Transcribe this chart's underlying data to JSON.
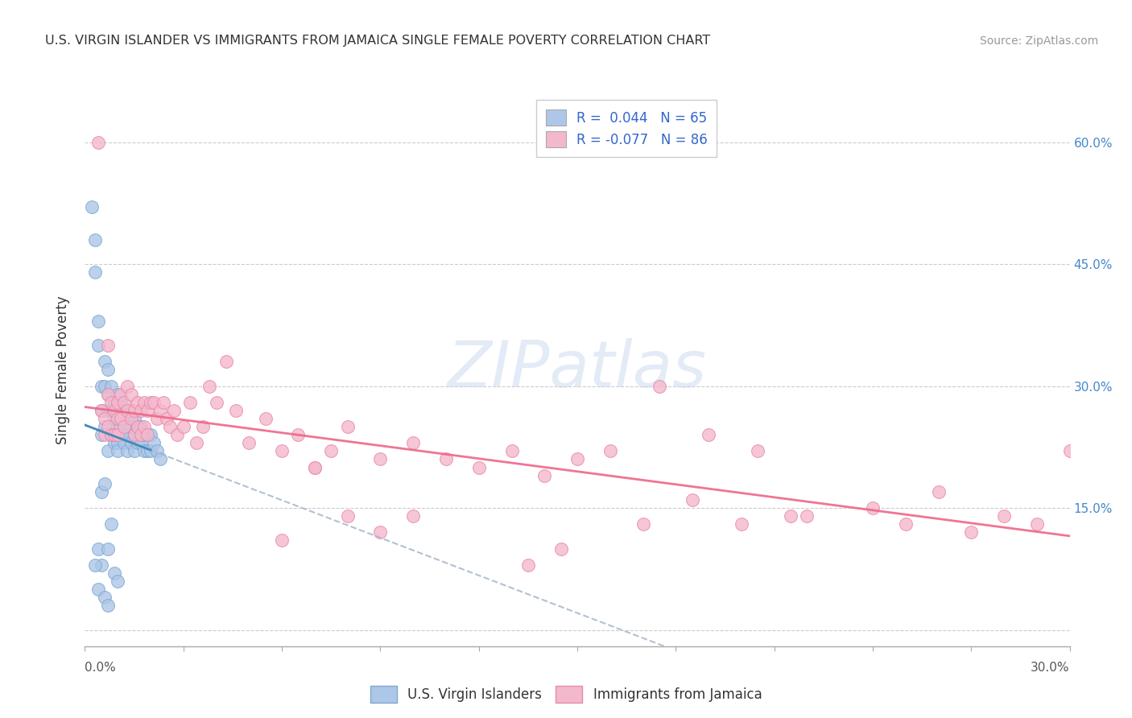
{
  "title": "U.S. VIRGIN ISLANDER VS IMMIGRANTS FROM JAMAICA SINGLE FEMALE POVERTY CORRELATION CHART",
  "source": "Source: ZipAtlas.com",
  "ylabel": "Single Female Poverty",
  "y_ticks": [
    0.0,
    0.15,
    0.3,
    0.45,
    0.6
  ],
  "y_tick_labels": [
    "",
    "15.0%",
    "30.0%",
    "45.0%",
    "60.0%"
  ],
  "x_range": [
    0.0,
    0.3
  ],
  "y_range": [
    -0.02,
    0.66
  ],
  "blue_color": "#aec6e8",
  "pink_color": "#f4b8cc",
  "blue_edge": "#7aaad0",
  "pink_edge": "#e88aaa",
  "trend_blue_color": "#4488bb",
  "trend_pink_color": "#ee6688",
  "watermark_color": "#c8d8f0",
  "R_blue": 0.044,
  "N_blue": 65,
  "R_pink": -0.077,
  "N_pink": 86,
  "blue_x": [
    0.002,
    0.003,
    0.003,
    0.004,
    0.004,
    0.004,
    0.005,
    0.005,
    0.005,
    0.005,
    0.006,
    0.006,
    0.006,
    0.007,
    0.007,
    0.007,
    0.007,
    0.008,
    0.008,
    0.008,
    0.009,
    0.009,
    0.009,
    0.01,
    0.01,
    0.01,
    0.01,
    0.01,
    0.011,
    0.011,
    0.011,
    0.012,
    0.012,
    0.012,
    0.013,
    0.013,
    0.013,
    0.014,
    0.014,
    0.015,
    0.015,
    0.015,
    0.016,
    0.016,
    0.017,
    0.017,
    0.018,
    0.018,
    0.019,
    0.019,
    0.02,
    0.02,
    0.021,
    0.022,
    0.023,
    0.004,
    0.005,
    0.003,
    0.006,
    0.007,
    0.008,
    0.009,
    0.01,
    0.006,
    0.007
  ],
  "blue_y": [
    0.52,
    0.48,
    0.44,
    0.38,
    0.35,
    0.1,
    0.3,
    0.27,
    0.24,
    0.08,
    0.33,
    0.3,
    0.25,
    0.32,
    0.29,
    0.27,
    0.22,
    0.3,
    0.27,
    0.24,
    0.28,
    0.26,
    0.23,
    0.29,
    0.27,
    0.25,
    0.23,
    0.22,
    0.28,
    0.26,
    0.24,
    0.27,
    0.25,
    0.23,
    0.26,
    0.24,
    0.22,
    0.25,
    0.23,
    0.26,
    0.24,
    0.22,
    0.25,
    0.23,
    0.25,
    0.23,
    0.24,
    0.22,
    0.24,
    0.22,
    0.24,
    0.22,
    0.23,
    0.22,
    0.21,
    0.05,
    0.17,
    0.08,
    0.18,
    0.1,
    0.13,
    0.07,
    0.06,
    0.04,
    0.03
  ],
  "pink_x": [
    0.004,
    0.005,
    0.006,
    0.006,
    0.007,
    0.007,
    0.008,
    0.008,
    0.009,
    0.009,
    0.01,
    0.01,
    0.01,
    0.011,
    0.011,
    0.012,
    0.012,
    0.013,
    0.013,
    0.014,
    0.014,
    0.015,
    0.015,
    0.016,
    0.016,
    0.017,
    0.017,
    0.018,
    0.018,
    0.019,
    0.019,
    0.02,
    0.021,
    0.022,
    0.023,
    0.024,
    0.025,
    0.026,
    0.027,
    0.028,
    0.03,
    0.032,
    0.034,
    0.036,
    0.038,
    0.04,
    0.043,
    0.046,
    0.05,
    0.055,
    0.06,
    0.065,
    0.07,
    0.075,
    0.08,
    0.09,
    0.1,
    0.11,
    0.12,
    0.13,
    0.14,
    0.15,
    0.16,
    0.175,
    0.19,
    0.205,
    0.22,
    0.24,
    0.26,
    0.28,
    0.3,
    0.17,
    0.185,
    0.2,
    0.215,
    0.06,
    0.07,
    0.08,
    0.09,
    0.1,
    0.007,
    0.135,
    0.145,
    0.25,
    0.27,
    0.29
  ],
  "pink_y": [
    0.6,
    0.27,
    0.26,
    0.24,
    0.29,
    0.25,
    0.28,
    0.24,
    0.27,
    0.24,
    0.28,
    0.26,
    0.24,
    0.29,
    0.26,
    0.28,
    0.25,
    0.3,
    0.27,
    0.29,
    0.26,
    0.27,
    0.24,
    0.28,
    0.25,
    0.27,
    0.24,
    0.28,
    0.25,
    0.27,
    0.24,
    0.28,
    0.28,
    0.26,
    0.27,
    0.28,
    0.26,
    0.25,
    0.27,
    0.24,
    0.25,
    0.28,
    0.23,
    0.25,
    0.3,
    0.28,
    0.33,
    0.27,
    0.23,
    0.26,
    0.22,
    0.24,
    0.2,
    0.22,
    0.25,
    0.21,
    0.23,
    0.21,
    0.2,
    0.22,
    0.19,
    0.21,
    0.22,
    0.3,
    0.24,
    0.22,
    0.14,
    0.15,
    0.17,
    0.14,
    0.22,
    0.13,
    0.16,
    0.13,
    0.14,
    0.11,
    0.2,
    0.14,
    0.12,
    0.14,
    0.35,
    0.08,
    0.1,
    0.13,
    0.12,
    0.13
  ]
}
